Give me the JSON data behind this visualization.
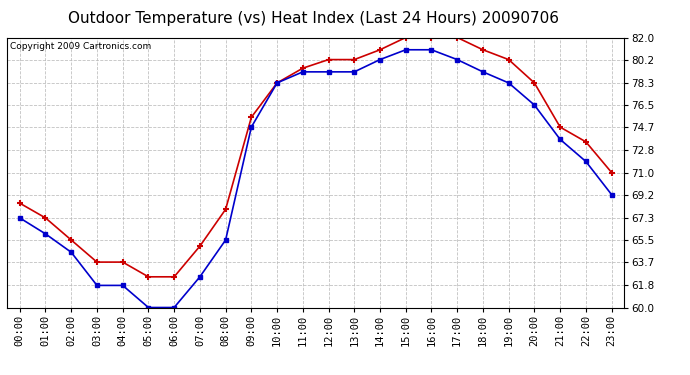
{
  "title": "Outdoor Temperature (vs) Heat Index (Last 24 Hours) 20090706",
  "copyright": "Copyright 2009 Cartronics.com",
  "hours": [
    "00:00",
    "01:00",
    "02:00",
    "03:00",
    "04:00",
    "05:00",
    "06:00",
    "07:00",
    "08:00",
    "09:00",
    "10:00",
    "11:00",
    "12:00",
    "13:00",
    "14:00",
    "15:00",
    "16:00",
    "17:00",
    "18:00",
    "19:00",
    "20:00",
    "21:00",
    "22:00",
    "23:00"
  ],
  "temp": [
    67.3,
    66.0,
    64.5,
    61.8,
    61.8,
    60.0,
    60.0,
    62.5,
    65.5,
    74.7,
    78.3,
    79.2,
    79.2,
    79.2,
    80.2,
    81.0,
    81.0,
    80.2,
    79.2,
    78.3,
    76.5,
    73.7,
    71.9,
    69.2
  ],
  "heat_index": [
    68.5,
    67.3,
    65.5,
    63.7,
    63.7,
    62.5,
    62.5,
    65.0,
    68.0,
    75.5,
    78.3,
    79.5,
    80.2,
    80.2,
    81.0,
    82.0,
    82.0,
    82.0,
    81.0,
    80.2,
    78.3,
    74.7,
    73.5,
    71.0
  ],
  "temp_color": "#0000cc",
  "heat_color": "#cc0000",
  "bg_color": "#ffffff",
  "grid_color": "#bbbbbb",
  "ylim": [
    60.0,
    82.0
  ],
  "yticks": [
    60.0,
    61.8,
    63.7,
    65.5,
    67.3,
    69.2,
    71.0,
    72.8,
    74.7,
    76.5,
    78.3,
    80.2,
    82.0
  ],
  "title_fontsize": 11,
  "copyright_fontsize": 6.5,
  "tick_fontsize": 7.5
}
